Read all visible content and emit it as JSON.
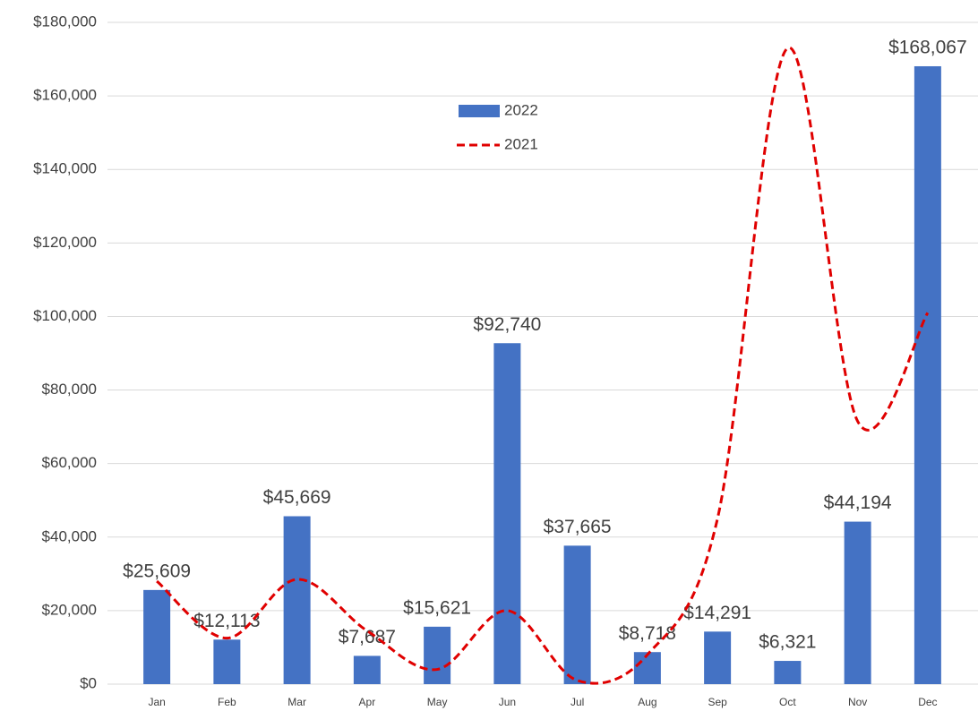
{
  "chart_data": {
    "type": "bar",
    "categories": [
      "Jan",
      "Feb",
      "Mar",
      "Apr",
      "May",
      "Jun",
      "Jul",
      "Aug",
      "Sep",
      "Oct",
      "Nov",
      "Dec"
    ],
    "series": [
      {
        "name": "2022",
        "type": "bar",
        "color": "#4472c4",
        "values": [
          25609,
          12113,
          45669,
          7687,
          15621,
          92740,
          37665,
          8718,
          14291,
          6321,
          44194,
          168067
        ],
        "value_labels": [
          "$25,609",
          "$12,113",
          "$45,669",
          "$7,687",
          "$15,621",
          "$92,740",
          "$37,665",
          "$8,718",
          "$14,291",
          "$6,321",
          "$44,194",
          "$168,067"
        ]
      },
      {
        "name": "2021",
        "type": "line",
        "color": "#e00000",
        "dashed": true,
        "smooth": true,
        "values": [
          28000,
          12500,
          28500,
          14500,
          4000,
          20000,
          1000,
          8000,
          45000,
          173000,
          71500,
          101000
        ]
      }
    ],
    "ylim": [
      0,
      180000
    ],
    "yticks": [
      {
        "value": 0,
        "label": "$0"
      },
      {
        "value": 20000,
        "label": "$20,000"
      },
      {
        "value": 40000,
        "label": "$40,000"
      },
      {
        "value": 60000,
        "label": "$60,000"
      },
      {
        "value": 80000,
        "label": "$80,000"
      },
      {
        "value": 100000,
        "label": "$100,000"
      },
      {
        "value": 120000,
        "label": "$120,000"
      },
      {
        "value": 140000,
        "label": "$140,000"
      },
      {
        "value": 160000,
        "label": "$160,000"
      },
      {
        "value": 180000,
        "label": "$180,000"
      }
    ],
    "grid": true
  }
}
